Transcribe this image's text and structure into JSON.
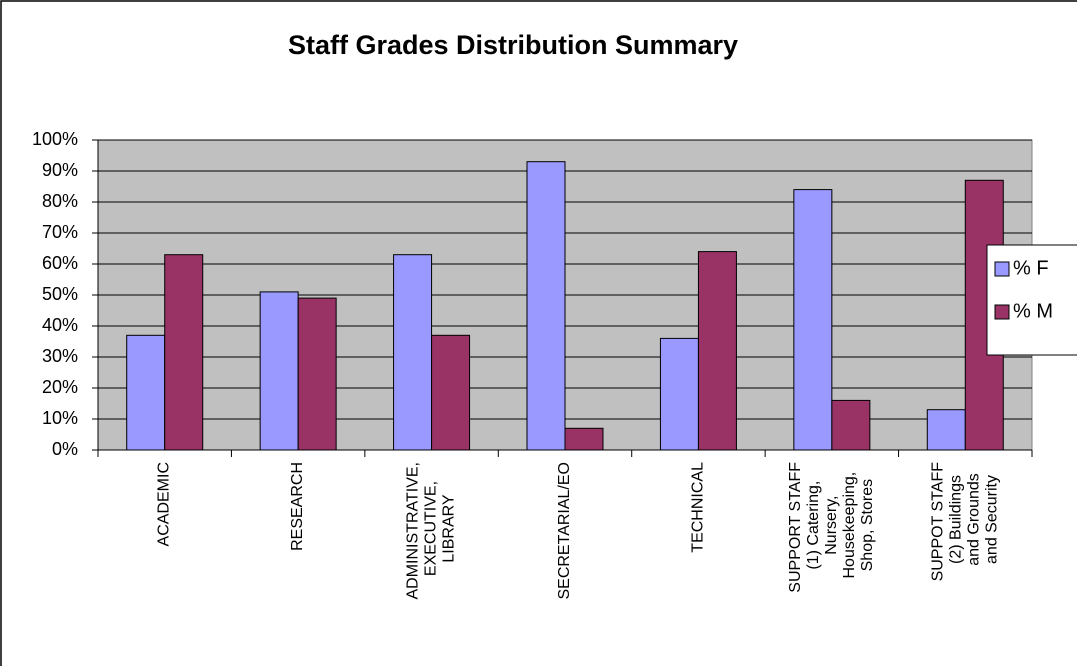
{
  "chart_data": {
    "type": "bar",
    "title": "Staff Grades Distribution Summary",
    "categories": [
      "ACADEMIC",
      "RESEARCH",
      "ADMINISTRATIVE, EXECUTIVE, LIBRARY",
      "SECRETARIAL/EO",
      "TECHNICAL",
      "SUPPORT STAFF (1) Catering, Nursery, Housekeeping, Shop, Stores",
      "SUPPOT STAFF (2) Buildings and Grounds and Security"
    ],
    "series": [
      {
        "name": "% F",
        "color": "#9999ff",
        "values": [
          37,
          51,
          63,
          93,
          36,
          84,
          13
        ]
      },
      {
        "name": "% M",
        "color": "#993366",
        "values": [
          63,
          49,
          37,
          7,
          64,
          16,
          87
        ]
      }
    ],
    "ylim": [
      0,
      100
    ],
    "yticks": [
      {
        "value": 0,
        "label": "0%"
      },
      {
        "value": 10,
        "label": "10%"
      },
      {
        "value": 20,
        "label": "20%"
      },
      {
        "value": 30,
        "label": "30%"
      },
      {
        "value": 40,
        "label": "40%"
      },
      {
        "value": 50,
        "label": "50%"
      },
      {
        "value": 60,
        "label": "60%"
      },
      {
        "value": 70,
        "label": "70%"
      },
      {
        "value": 80,
        "label": "80%"
      },
      {
        "value": 90,
        "label": "90%"
      },
      {
        "value": 100,
        "label": "100%"
      }
    ],
    "grid": true,
    "legend": "right"
  }
}
